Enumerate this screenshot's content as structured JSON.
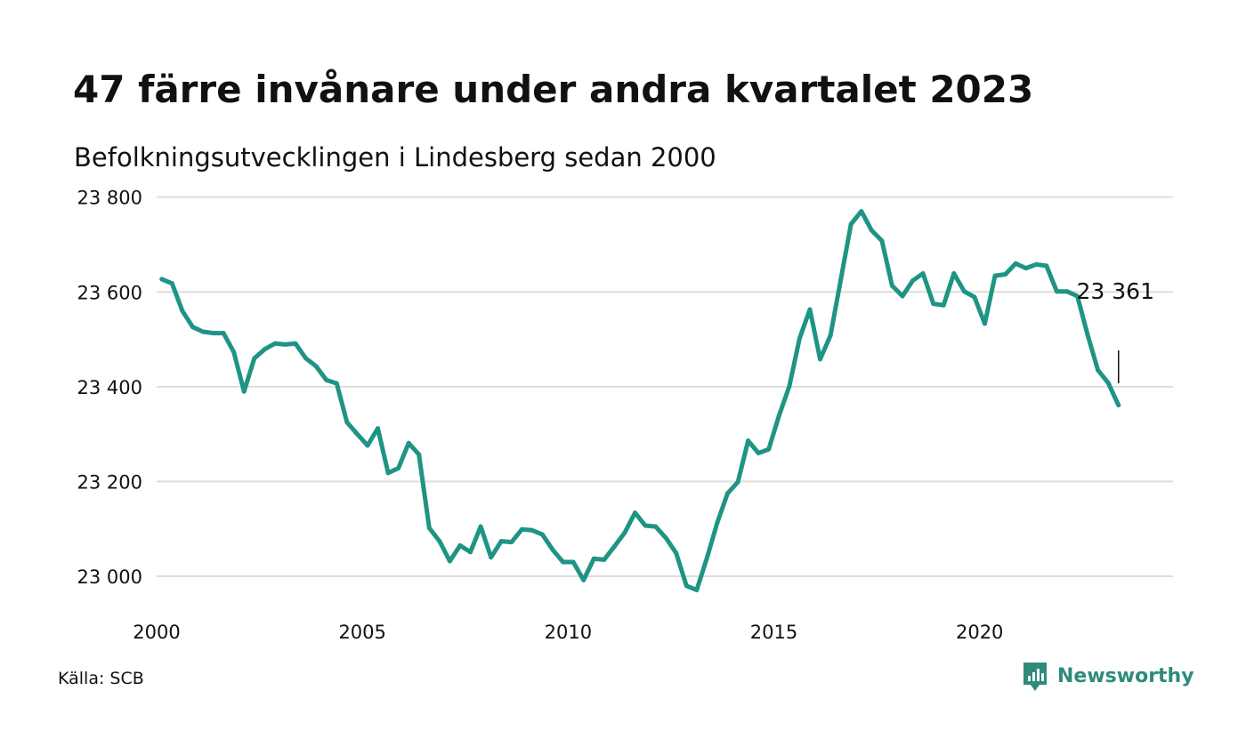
{
  "title": "47 färre invånare under andra kvartalet 2023",
  "subtitle": "Befolkningsutvecklingen i Lindesberg sedan 2000",
  "source": "Källa: SCB",
  "brand": {
    "name": "Newsworthy",
    "icon": "newsworthy-logo-icon",
    "color": "#2e8b7a"
  },
  "chart_data": {
    "type": "line",
    "title": "47 färre invånare under andra kvartalet 2023",
    "subtitle": "Befolkningsutvecklingen i Lindesberg sedan 2000",
    "xlabel": "",
    "ylabel": "",
    "xlim": [
      2000,
      2024.7
    ],
    "ylim": [
      22940,
      23820
    ],
    "grid": true,
    "line_color": "#1e9484",
    "grid_color": "#dddddd",
    "x_ticks": [
      2000,
      2005,
      2010,
      2015,
      2020
    ],
    "x_tick_labels": [
      "2000",
      "2005",
      "2010",
      "2015",
      "2020"
    ],
    "y_ticks": [
      23000,
      23200,
      23400,
      23600,
      23800
    ],
    "y_tick_labels": [
      "23 000",
      "23 200",
      "23 400",
      "23 600",
      "23 800"
    ],
    "end_label": "23 361",
    "series": [
      {
        "name": "",
        "x": [
          2000.125,
          2000.375,
          2000.625,
          2000.875,
          2001.125,
          2001.375,
          2001.625,
          2001.875,
          2002.125,
          2002.375,
          2002.625,
          2002.875,
          2003.125,
          2003.375,
          2003.625,
          2003.875,
          2004.125,
          2004.375,
          2004.625,
          2004.875,
          2005.125,
          2005.375,
          2005.625,
          2005.875,
          2006.125,
          2006.375,
          2006.625,
          2006.875,
          2007.125,
          2007.375,
          2007.625,
          2007.875,
          2008.125,
          2008.375,
          2008.625,
          2008.875,
          2009.125,
          2009.375,
          2009.625,
          2009.875,
          2010.125,
          2010.375,
          2010.625,
          2010.875,
          2011.125,
          2011.375,
          2011.625,
          2011.875,
          2012.125,
          2012.375,
          2012.625,
          2012.875,
          2013.125,
          2013.375,
          2013.625,
          2013.875,
          2014.125,
          2014.375,
          2014.625,
          2014.875,
          2015.125,
          2015.375,
          2015.625,
          2015.875,
          2016.125,
          2016.375,
          2016.625,
          2016.875,
          2017.125,
          2017.375,
          2017.625,
          2017.875,
          2018.125,
          2018.375,
          2018.625,
          2018.875,
          2019.125,
          2019.375,
          2019.625,
          2019.875,
          2020.125,
          2020.375,
          2020.625,
          2020.875,
          2021.125,
          2021.375,
          2021.625,
          2021.875,
          2022.125,
          2022.375,
          2022.625,
          2022.875,
          2023.125,
          2023.375
        ],
        "values": [
          23627,
          23618,
          23560,
          23526,
          23516,
          23513,
          23513,
          23473,
          23390,
          23460,
          23479,
          23491,
          23489,
          23491,
          23460,
          23443,
          23414,
          23407,
          23325,
          23300,
          23276,
          23312,
          23218,
          23228,
          23281,
          23257,
          23102,
          23074,
          23032,
          23065,
          23051,
          23105,
          23040,
          23074,
          23072,
          23099,
          23097,
          23088,
          23056,
          23030,
          23030,
          22992,
          23037,
          23035,
          23063,
          23092,
          23134,
          23107,
          23105,
          23081,
          23049,
          22980,
          22971,
          23039,
          23113,
          23175,
          23199,
          23286,
          23260,
          23268,
          23339,
          23401,
          23502,
          23563,
          23458,
          23508,
          23626,
          23743,
          23770,
          23730,
          23708,
          23613,
          23591,
          23624,
          23639,
          23575,
          23572,
          23639,
          23601,
          23589,
          23533,
          23634,
          23637,
          23660,
          23650,
          23658,
          23655,
          23601,
          23601,
          23591,
          23509,
          23435,
          23408,
          23361
        ]
      }
    ]
  }
}
